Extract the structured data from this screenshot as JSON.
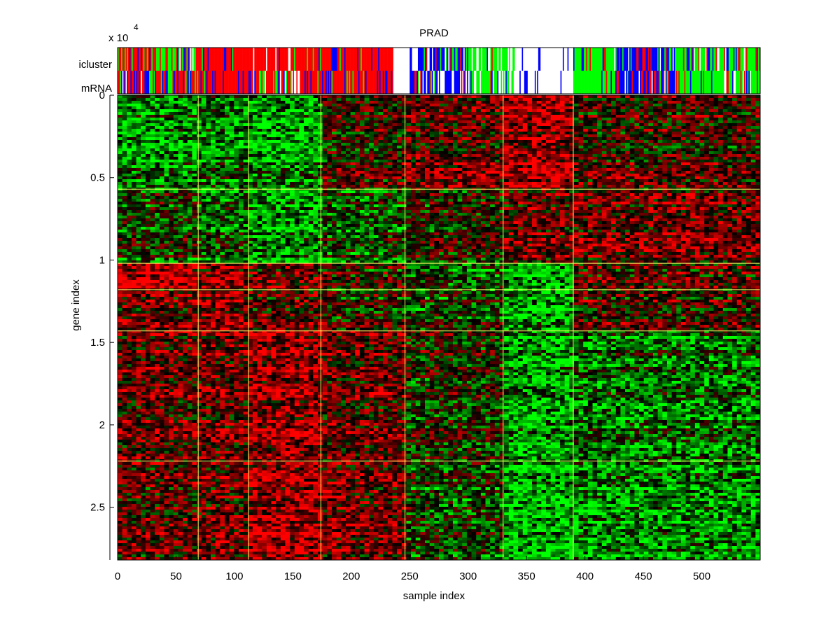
{
  "chart_data": {
    "type": "heatmap",
    "title": "PRAD",
    "xlabel": "sample index",
    "ylabel": "gene index",
    "y_exponent_label": "x 10",
    "y_exponent_power": "4",
    "xlim": [
      0,
      550
    ],
    "ylim": [
      0,
      28200
    ],
    "y_reversed": true,
    "x_ticks": [
      {
        "value": 0,
        "label": "0"
      },
      {
        "value": 50,
        "label": "50"
      },
      {
        "value": 100,
        "label": "100"
      },
      {
        "value": 150,
        "label": "150"
      },
      {
        "value": 200,
        "label": "200"
      },
      {
        "value": 250,
        "label": "250"
      },
      {
        "value": 300,
        "label": "300"
      },
      {
        "value": 350,
        "label": "350"
      },
      {
        "value": 400,
        "label": "400"
      },
      {
        "value": 450,
        "label": "450"
      },
      {
        "value": 500,
        "label": "500"
      }
    ],
    "y_ticks": [
      {
        "value": 0,
        "label": "0"
      },
      {
        "value": 5000,
        "label": "0.5"
      },
      {
        "value": 10000,
        "label": "1"
      },
      {
        "value": 15000,
        "label": "1.5"
      },
      {
        "value": 20000,
        "label": "2"
      },
      {
        "value": 25000,
        "label": "2.5"
      }
    ],
    "annotation_rows": [
      {
        "label": "icluster",
        "colors": [
          "red",
          "green",
          "blue",
          "white"
        ]
      },
      {
        "label": "mRNA",
        "colors": [
          "red",
          "green",
          "blue",
          "white"
        ]
      }
    ],
    "sample_cluster_boundaries": [
      69,
      112,
      174,
      246,
      330,
      390
    ],
    "gene_cluster_boundaries": [
      5700,
      10200,
      11800,
      14300,
      22200
    ],
    "colormap": {
      "low": "#00ff00",
      "mid": "#000000",
      "high": "#ff0000"
    },
    "annotation_colors": {
      "red": "#ff0000",
      "green": "#00ff00",
      "blue": "#0000ff",
      "white": "#ffffff"
    },
    "separator_color": "#ffff66",
    "sample_blocks": [
      {
        "start": 0,
        "end": 69,
        "gene_bands": [
          -0.55,
          -0.1,
          0.7,
          0.35,
          0.3,
          0.25
        ]
      },
      {
        "start": 69,
        "end": 112,
        "gene_bands": [
          -0.45,
          -0.3,
          0.45,
          0.5,
          0.35,
          0.3
        ]
      },
      {
        "start": 112,
        "end": 174,
        "gene_bands": [
          -0.6,
          -0.55,
          0.3,
          0.25,
          0.55,
          0.6
        ]
      },
      {
        "start": 174,
        "end": 246,
        "gene_bands": [
          0.1,
          -0.25,
          0.05,
          0.0,
          0.3,
          0.35
        ]
      },
      {
        "start": 246,
        "end": 330,
        "gene_bands": [
          0.3,
          0.05,
          -0.35,
          -0.2,
          -0.05,
          -0.2
        ]
      },
      {
        "start": 330,
        "end": 390,
        "gene_bands": [
          0.6,
          0.35,
          -0.75,
          -0.65,
          -0.6,
          -0.7
        ]
      },
      {
        "start": 390,
        "end": 550,
        "gene_bands": [
          0.15,
          0.4,
          0.15,
          0.15,
          -0.4,
          -0.55
        ]
      }
    ],
    "annotation_segments": [
      {
        "start": 0,
        "end": 69,
        "icluster": {
          "red": 0.5,
          "green": 0.3,
          "blue": 0.15,
          "white": 0.05
        },
        "mrna": {
          "red": 0.45,
          "green": 0.2,
          "blue": 0.3,
          "white": 0.05
        }
      },
      {
        "start": 69,
        "end": 112,
        "icluster": {
          "red": 0.85,
          "green": 0.05,
          "blue": 0.1,
          "white": 0.0
        },
        "mrna": {
          "red": 0.8,
          "green": 0.05,
          "blue": 0.15,
          "white": 0.0
        }
      },
      {
        "start": 112,
        "end": 160,
        "icluster": {
          "red": 0.8,
          "green": 0.05,
          "blue": 0.05,
          "white": 0.1
        },
        "mrna": {
          "red": 0.7,
          "green": 0.1,
          "blue": 0.1,
          "white": 0.1
        }
      },
      {
        "start": 160,
        "end": 236,
        "icluster": {
          "red": 0.75,
          "green": 0.1,
          "blue": 0.15,
          "white": 0.0
        },
        "mrna": {
          "red": 0.75,
          "green": 0.1,
          "blue": 0.15,
          "white": 0.0
        }
      },
      {
        "start": 236,
        "end": 250,
        "icluster": {
          "red": 0.0,
          "green": 0.0,
          "blue": 0.0,
          "white": 1.0
        },
        "mrna": {
          "red": 0.0,
          "green": 0.0,
          "blue": 0.0,
          "white": 1.0
        }
      },
      {
        "start": 250,
        "end": 300,
        "icluster": {
          "red": 0.1,
          "green": 0.15,
          "blue": 0.5,
          "white": 0.25
        },
        "mrna": {
          "red": 0.1,
          "green": 0.1,
          "blue": 0.55,
          "white": 0.25
        }
      },
      {
        "start": 300,
        "end": 340,
        "icluster": {
          "red": 0.05,
          "green": 0.55,
          "blue": 0.1,
          "white": 0.3
        },
        "mrna": {
          "red": 0.05,
          "green": 0.45,
          "blue": 0.1,
          "white": 0.4
        }
      },
      {
        "start": 340,
        "end": 390,
        "icluster": {
          "red": 0.0,
          "green": 0.0,
          "blue": 0.15,
          "white": 0.85
        },
        "mrna": {
          "red": 0.0,
          "green": 0.0,
          "blue": 0.15,
          "white": 0.85
        }
      },
      {
        "start": 390,
        "end": 425,
        "icluster": {
          "red": 0.05,
          "green": 0.9,
          "blue": 0.05,
          "white": 0.0
        },
        "mrna": {
          "red": 0.1,
          "green": 0.85,
          "blue": 0.05,
          "white": 0.0
        }
      },
      {
        "start": 425,
        "end": 475,
        "icluster": {
          "red": 0.15,
          "green": 0.1,
          "blue": 0.65,
          "white": 0.1
        },
        "mrna": {
          "red": 0.15,
          "green": 0.1,
          "blue": 0.65,
          "white": 0.1
        }
      },
      {
        "start": 475,
        "end": 550,
        "icluster": {
          "red": 0.1,
          "green": 0.7,
          "blue": 0.1,
          "white": 0.1
        },
        "mrna": {
          "red": 0.1,
          "green": 0.65,
          "blue": 0.15,
          "white": 0.1
        }
      }
    ]
  }
}
